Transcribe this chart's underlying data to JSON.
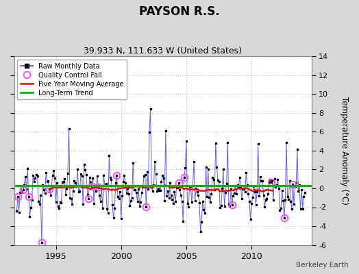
{
  "title": "PAYSON R.S.",
  "subtitle": "39.933 N, 111.633 W (United States)",
  "ylabel": "Temperature Anomaly (°C)",
  "attribution": "Berkeley Earth",
  "background_color": "#d8d8d8",
  "plot_bg_color": "#ffffff",
  "grid_color": "#c0c0c0",
  "raw_line_color": "#4444dd",
  "raw_marker_color": "#000000",
  "qc_fail_color": "#ff44ff",
  "moving_avg_color": "#ff0000",
  "trend_color": "#00bb00",
  "ylim": [
    -6,
    14
  ],
  "yticks": [
    -6,
    -4,
    -2,
    0,
    2,
    4,
    6,
    8,
    10,
    12,
    14
  ],
  "xstart": 1991.8,
  "xend": 2014.6,
  "xticks": [
    1995,
    2000,
    2005,
    2010
  ],
  "trend_y": 0.28
}
